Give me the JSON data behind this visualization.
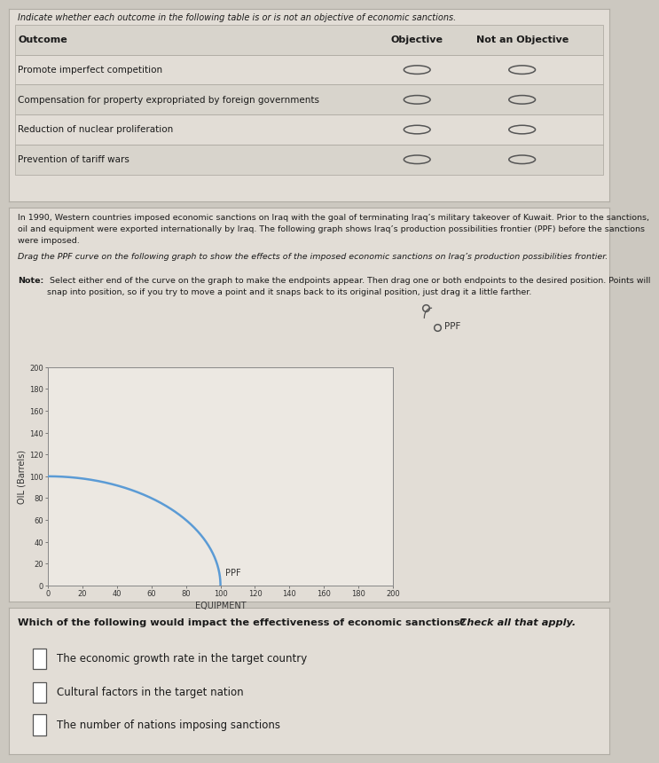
{
  "bg_color": "#ccc8c0",
  "panel_bg": "#e2ddd6",
  "graph_outer_bg": "#c8c4bc",
  "graph_bg": "#ece8e2",
  "title_text": "Indicate whether each outcome in the following table is or is not an objective of economic sanctions.",
  "table_headers": [
    "Outcome",
    "Objective",
    "Not an Objective"
  ],
  "table_rows": [
    "Promote imperfect competition",
    "Compensation for property expropriated by foreign governments",
    "Reduction of nuclear proliferation",
    "Prevention of tariff wars"
  ],
  "para1": "In 1990, Western countries imposed economic sanctions on Iraq with the goal of terminating Iraq’s military takeover of Kuwait. Prior to the sanctions,\noil and equipment were exported internationally by Iraq. The following graph shows Iraq’s production possibilities frontier (PPF) before the sanctions\nwere imposed.",
  "para2_italic": "Drag the PPF curve on the following graph to show the effects of the imposed economic sanctions on Iraq’s production possibilities frontier.",
  "para3_bold": "Note:",
  "para3_rest": " Select either end of the curve on the graph to make the endpoints appear. Then drag one or both endpoints to the desired position. Points will\nsnap into position, so if you try to move a point and it snaps back to its original position, just drag it a little farther.",
  "graph_xlabel": "EQUIPMENT",
  "graph_ylabel": "OIL (Barrels)",
  "graph_xlim": [
    0,
    200
  ],
  "graph_ylim": [
    0,
    200
  ],
  "graph_xticks": [
    0,
    20,
    40,
    60,
    80,
    100,
    120,
    140,
    160,
    180,
    200
  ],
  "graph_yticks": [
    0,
    20,
    40,
    60,
    80,
    100,
    120,
    140,
    160,
    180,
    200
  ],
  "ppf_color": "#5b9bd5",
  "ppf_label": "PPF",
  "question3_text": "Which of the following would impact the effectiveness of economic sanctions? ",
  "question3_italic": "Check all that apply.",
  "checkboxes": [
    "The economic growth rate in the target country",
    "Cultural factors in the target nation",
    "The number of nations imposing sanctions"
  ]
}
